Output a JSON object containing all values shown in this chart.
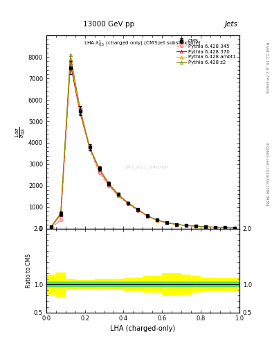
{
  "title": "13000 GeV pp",
  "title_right": "Jets",
  "xlabel": "LHA (charged-only)",
  "ylabel_ratio": "Ratio to CMS",
  "sidebar_right_top": "Rivet 3.1.10, ≥ 2.7M events",
  "sidebar_right_bot": "mcplots.cern.ch [arXiv:1306.3436]",
  "watermark": "CMS_2021_I1920187",
  "xbins": [
    0.0,
    0.05,
    0.1,
    0.15,
    0.2,
    0.25,
    0.3,
    0.35,
    0.4,
    0.45,
    0.5,
    0.55,
    0.6,
    0.65,
    0.7,
    0.75,
    0.8,
    0.85,
    0.9,
    0.95,
    1.0
  ],
  "x_centers": [
    0.025,
    0.075,
    0.125,
    0.175,
    0.225,
    0.275,
    0.325,
    0.375,
    0.425,
    0.475,
    0.525,
    0.575,
    0.625,
    0.675,
    0.725,
    0.775,
    0.825,
    0.875,
    0.925,
    0.975
  ],
  "cms_y": [
    100,
    700,
    7500,
    5500,
    3800,
    2800,
    2100,
    1600,
    1200,
    900,
    600,
    400,
    280,
    200,
    150,
    120,
    90,
    70,
    55,
    40
  ],
  "cms_yerr": [
    30,
    100,
    300,
    200,
    150,
    100,
    80,
    60,
    50,
    40,
    30,
    25,
    20,
    18,
    15,
    12,
    10,
    9,
    8,
    7
  ],
  "py345_y": [
    50,
    400,
    7800,
    5600,
    3700,
    2600,
    2000,
    1500,
    1150,
    850,
    580,
    390,
    270,
    195,
    145,
    115,
    85,
    68,
    52,
    38
  ],
  "py370_y": [
    80,
    650,
    7700,
    5400,
    3750,
    2750,
    2050,
    1550,
    1180,
    880,
    590,
    395,
    275,
    198,
    148,
    118,
    88,
    70,
    54,
    40
  ],
  "pyambt1_y": [
    85,
    700,
    7900,
    5500,
    3780,
    2780,
    2080,
    1560,
    1190,
    885,
    595,
    398,
    278,
    200,
    150,
    120,
    90,
    71,
    55,
    41
  ],
  "pyz2_y": [
    90,
    720,
    8100,
    5600,
    3800,
    2800,
    2100,
    1580,
    1200,
    895,
    600,
    402,
    280,
    202,
    152,
    122,
    92,
    72,
    56,
    42
  ],
  "ratio_cms_green": [
    0.05,
    0.05,
    0.05,
    0.05,
    0.05,
    0.05,
    0.05,
    0.05,
    0.05,
    0.05,
    0.05,
    0.05,
    0.05,
    0.05,
    0.05,
    0.05,
    0.05,
    0.05,
    0.05,
    0.05
  ],
  "ratio_cms_yellow": [
    0.18,
    0.22,
    0.1,
    0.08,
    0.08,
    0.1,
    0.1,
    0.1,
    0.12,
    0.12,
    0.15,
    0.15,
    0.2,
    0.2,
    0.18,
    0.15,
    0.12,
    0.12,
    0.12,
    0.12
  ],
  "color_cms": "#000000",
  "color_py345": "#ff6666",
  "color_py370": "#cc0033",
  "color_pyambt1": "#ffaa00",
  "color_pyz2": "#888800",
  "ylim_main": [
    0,
    9000
  ],
  "ylim_ratio": [
    0.5,
    2.0
  ],
  "yticks_main": [
    0,
    1000,
    2000,
    3000,
    4000,
    5000,
    6000,
    7000,
    8000
  ],
  "yticks_ratio": [
    0.5,
    1.0,
    2.0
  ],
  "bg_color": "#ffffff"
}
